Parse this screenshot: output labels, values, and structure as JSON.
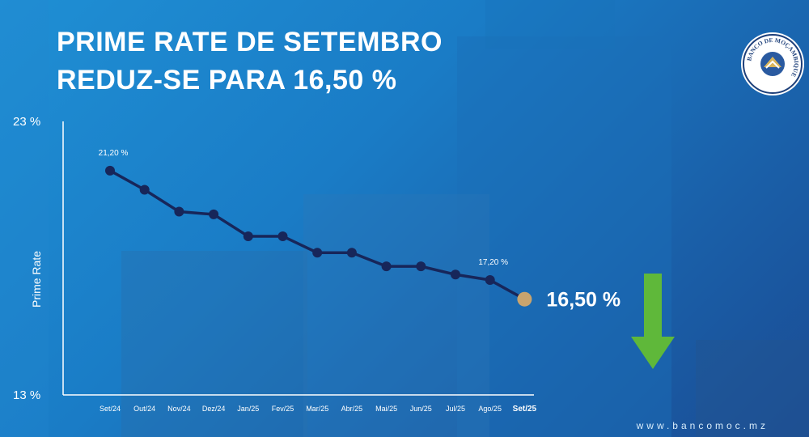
{
  "title_line1": "PRIME RATE DE SETEMBRO",
  "title_line2": "REDUZ-SE PARA 16,50 %",
  "logo_text": "BANCO DE MOÇAMBIQUE",
  "website": "www.bancomoc.mz",
  "colors": {
    "line": "#17265a",
    "highlight_point": "#c9a46e",
    "arrow": "#5fb83a",
    "text": "#ffffff"
  },
  "icons": {
    "arrow": "down-arrow-icon"
  },
  "chart_data": {
    "type": "line",
    "title": "PRIME RATE DE SETEMBRO REDUZ-SE PARA 16,50 %",
    "xlabel": "",
    "ylabel": "Prime Rate",
    "ylim": [
      13,
      23
    ],
    "ytick_labels": [
      "23 %",
      "13 %"
    ],
    "categories": [
      "Set/24",
      "Out/24",
      "Nov/24",
      "Dez/24",
      "Jan/25",
      "Fev/25",
      "Mar/25",
      "Abr/25",
      "Mai/25",
      "Jun/25",
      "Jul/25",
      "Ago/25",
      "Set/25"
    ],
    "series": [
      {
        "values": [
          21.2,
          20.5,
          19.7,
          19.6,
          18.8,
          18.8,
          18.2,
          18.2,
          17.7,
          17.7,
          17.4,
          17.2,
          16.5
        ]
      }
    ],
    "data_labels": [
      {
        "index": 0,
        "text": "21,20 %"
      },
      {
        "index": 11,
        "text": "17,20 %"
      },
      {
        "index": 12,
        "text": "16,50 %"
      }
    ],
    "grid": false,
    "legend": "none"
  }
}
